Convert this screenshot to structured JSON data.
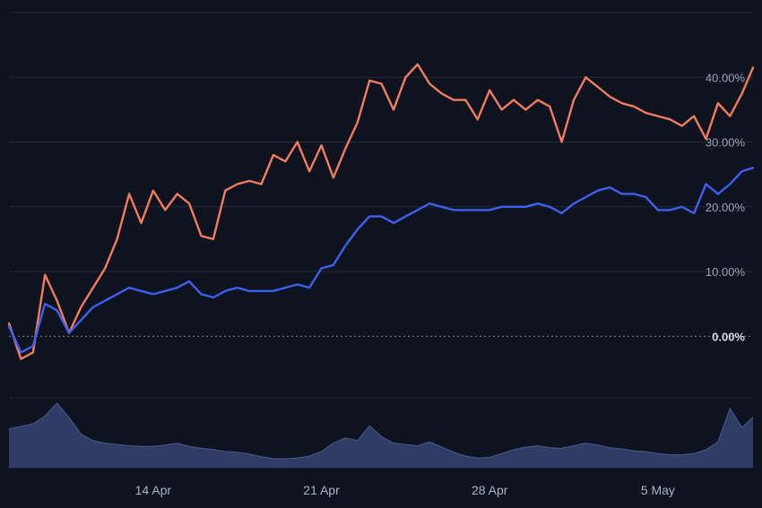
{
  "chart_data": {
    "type": "line",
    "title": "",
    "xlabel": "",
    "ylabel": "",
    "y_unit": "%",
    "ylim": [
      -9.5,
      50
    ],
    "y_ticks": [
      {
        "value": 0,
        "label": "0.00%"
      },
      {
        "value": 10,
        "label": "10.00%"
      },
      {
        "value": 20,
        "label": "20.00%"
      },
      {
        "value": 30,
        "label": "30.00%"
      },
      {
        "value": 40,
        "label": "40.00%"
      }
    ],
    "x_range": [
      "2024-04-08",
      "2024-05-08T23:00"
    ],
    "x_ticks": [
      {
        "date": "2024-04-14",
        "label": "14 Apr"
      },
      {
        "date": "2024-04-21",
        "label": "21 Apr"
      },
      {
        "date": "2024-04-28",
        "label": "28 Apr"
      },
      {
        "date": "2024-05-05",
        "label": "5 May"
      }
    ],
    "baseline_value": 0,
    "grid": true,
    "legend": "none",
    "series": [
      {
        "color": "#f47c5e",
        "points": [
          [
            "2024-04-08T00:00",
            2.0
          ],
          [
            "2024-04-08T12:00",
            -3.5
          ],
          [
            "2024-04-09T00:00",
            -2.5
          ],
          [
            "2024-04-09T12:00",
            9.5
          ],
          [
            "2024-04-10T00:00",
            5.5
          ],
          [
            "2024-04-10T12:00",
            0.5
          ],
          [
            "2024-04-11T00:00",
            4.5
          ],
          [
            "2024-04-11T12:00",
            7.5
          ],
          [
            "2024-04-12T00:00",
            10.5
          ],
          [
            "2024-04-12T12:00",
            15.0
          ],
          [
            "2024-04-13T00:00",
            22.0
          ],
          [
            "2024-04-13T12:00",
            17.5
          ],
          [
            "2024-04-14T00:00",
            22.5
          ],
          [
            "2024-04-14T12:00",
            19.5
          ],
          [
            "2024-04-15T00:00",
            22.0
          ],
          [
            "2024-04-15T12:00",
            20.5
          ],
          [
            "2024-04-16T00:00",
            15.5
          ],
          [
            "2024-04-16T12:00",
            15.0
          ],
          [
            "2024-04-17T00:00",
            22.5
          ],
          [
            "2024-04-17T12:00",
            23.5
          ],
          [
            "2024-04-18T00:00",
            24.0
          ],
          [
            "2024-04-18T12:00",
            23.5
          ],
          [
            "2024-04-19T00:00",
            28.0
          ],
          [
            "2024-04-19T12:00",
            27.0
          ],
          [
            "2024-04-20T00:00",
            30.0
          ],
          [
            "2024-04-20T12:00",
            25.5
          ],
          [
            "2024-04-21T00:00",
            29.5
          ],
          [
            "2024-04-21T12:00",
            24.5
          ],
          [
            "2024-04-22T00:00",
            29.0
          ],
          [
            "2024-04-22T12:00",
            33.0
          ],
          [
            "2024-04-23T00:00",
            39.5
          ],
          [
            "2024-04-23T12:00",
            39.0
          ],
          [
            "2024-04-24T00:00",
            35.0
          ],
          [
            "2024-04-24T12:00",
            40.0
          ],
          [
            "2024-04-25T00:00",
            42.0
          ],
          [
            "2024-04-25T12:00",
            39.0
          ],
          [
            "2024-04-26T00:00",
            37.5
          ],
          [
            "2024-04-26T12:00",
            36.5
          ],
          [
            "2024-04-27T00:00",
            36.5
          ],
          [
            "2024-04-27T12:00",
            33.5
          ],
          [
            "2024-04-28T00:00",
            38.0
          ],
          [
            "2024-04-28T12:00",
            35.0
          ],
          [
            "2024-04-29T00:00",
            36.5
          ],
          [
            "2024-04-29T12:00",
            35.0
          ],
          [
            "2024-04-30T00:00",
            36.5
          ],
          [
            "2024-04-30T12:00",
            35.5
          ],
          [
            "2024-05-01T00:00",
            30.0
          ],
          [
            "2024-05-01T12:00",
            36.5
          ],
          [
            "2024-05-02T00:00",
            40.0
          ],
          [
            "2024-05-02T12:00",
            38.5
          ],
          [
            "2024-05-03T00:00",
            37.0
          ],
          [
            "2024-05-03T12:00",
            36.0
          ],
          [
            "2024-05-04T00:00",
            35.5
          ],
          [
            "2024-05-04T12:00",
            34.5
          ],
          [
            "2024-05-05T00:00",
            34.0
          ],
          [
            "2024-05-05T12:00",
            33.5
          ],
          [
            "2024-05-06T00:00",
            32.5
          ],
          [
            "2024-05-06T12:00",
            34.0
          ],
          [
            "2024-05-07T00:00",
            30.5
          ],
          [
            "2024-05-07T12:00",
            36.0
          ],
          [
            "2024-05-08T00:00",
            34.0
          ],
          [
            "2024-05-08T12:00",
            37.5
          ],
          [
            "2024-05-08T23:00",
            41.5
          ]
        ]
      },
      {
        "color": "#3f5ff0",
        "points": [
          [
            "2024-04-08T00:00",
            1.5
          ],
          [
            "2024-04-08T12:00",
            -2.5
          ],
          [
            "2024-04-09T00:00",
            -1.5
          ],
          [
            "2024-04-09T12:00",
            5.0
          ],
          [
            "2024-04-10T00:00",
            4.0
          ],
          [
            "2024-04-10T12:00",
            0.5
          ],
          [
            "2024-04-11T00:00",
            2.5
          ],
          [
            "2024-04-11T12:00",
            4.5
          ],
          [
            "2024-04-12T00:00",
            5.5
          ],
          [
            "2024-04-12T12:00",
            6.5
          ],
          [
            "2024-04-13T00:00",
            7.5
          ],
          [
            "2024-04-13T12:00",
            7.0
          ],
          [
            "2024-04-14T00:00",
            6.5
          ],
          [
            "2024-04-14T12:00",
            7.0
          ],
          [
            "2024-04-15T00:00",
            7.5
          ],
          [
            "2024-04-15T12:00",
            8.5
          ],
          [
            "2024-04-16T00:00",
            6.5
          ],
          [
            "2024-04-16T12:00",
            6.0
          ],
          [
            "2024-04-17T00:00",
            7.0
          ],
          [
            "2024-04-17T12:00",
            7.5
          ],
          [
            "2024-04-18T00:00",
            7.0
          ],
          [
            "2024-04-18T12:00",
            7.0
          ],
          [
            "2024-04-19T00:00",
            7.0
          ],
          [
            "2024-04-19T12:00",
            7.5
          ],
          [
            "2024-04-20T00:00",
            8.0
          ],
          [
            "2024-04-20T12:00",
            7.5
          ],
          [
            "2024-04-21T00:00",
            10.5
          ],
          [
            "2024-04-21T12:00",
            11.0
          ],
          [
            "2024-04-22T00:00",
            14.0
          ],
          [
            "2024-04-22T12:00",
            16.5
          ],
          [
            "2024-04-23T00:00",
            18.5
          ],
          [
            "2024-04-23T12:00",
            18.5
          ],
          [
            "2024-04-24T00:00",
            17.5
          ],
          [
            "2024-04-24T12:00",
            18.5
          ],
          [
            "2024-04-25T00:00",
            19.5
          ],
          [
            "2024-04-25T12:00",
            20.5
          ],
          [
            "2024-04-26T00:00",
            20.0
          ],
          [
            "2024-04-26T12:00",
            19.5
          ],
          [
            "2024-04-27T00:00",
            19.5
          ],
          [
            "2024-04-27T12:00",
            19.5
          ],
          [
            "2024-04-28T00:00",
            19.5
          ],
          [
            "2024-04-28T12:00",
            20.0
          ],
          [
            "2024-04-29T00:00",
            20.0
          ],
          [
            "2024-04-29T12:00",
            20.0
          ],
          [
            "2024-04-30T00:00",
            20.5
          ],
          [
            "2024-04-30T12:00",
            20.0
          ],
          [
            "2024-05-01T00:00",
            19.0
          ],
          [
            "2024-05-01T12:00",
            20.5
          ],
          [
            "2024-05-02T00:00",
            21.5
          ],
          [
            "2024-05-02T12:00",
            22.5
          ],
          [
            "2024-05-03T00:00",
            23.0
          ],
          [
            "2024-05-03T12:00",
            22.0
          ],
          [
            "2024-05-04T00:00",
            22.0
          ],
          [
            "2024-05-04T12:00",
            21.5
          ],
          [
            "2024-05-05T00:00",
            19.5
          ],
          [
            "2024-05-05T12:00",
            19.5
          ],
          [
            "2024-05-06T00:00",
            20.0
          ],
          [
            "2024-05-06T12:00",
            19.0
          ],
          [
            "2024-05-07T00:00",
            23.5
          ],
          [
            "2024-05-07T12:00",
            22.0
          ],
          [
            "2024-05-08T00:00",
            23.5
          ],
          [
            "2024-05-08T12:00",
            25.5
          ],
          [
            "2024-05-08T23:00",
            26.0
          ]
        ]
      }
    ],
    "volume": {
      "color": "#34416b",
      "scale_max": 1.0,
      "points": [
        [
          "2024-04-08T00:00",
          0.6
        ],
        [
          "2024-04-08T12:00",
          0.64
        ],
        [
          "2024-04-09T00:00",
          0.68
        ],
        [
          "2024-04-09T12:00",
          0.8
        ],
        [
          "2024-04-10T00:00",
          1.0
        ],
        [
          "2024-04-10T12:00",
          0.78
        ],
        [
          "2024-04-11T00:00",
          0.52
        ],
        [
          "2024-04-11T12:00",
          0.42
        ],
        [
          "2024-04-12T00:00",
          0.38
        ],
        [
          "2024-04-12T12:00",
          0.36
        ],
        [
          "2024-04-13T00:00",
          0.34
        ],
        [
          "2024-04-13T12:00",
          0.33
        ],
        [
          "2024-04-14T00:00",
          0.33
        ],
        [
          "2024-04-14T12:00",
          0.35
        ],
        [
          "2024-04-15T00:00",
          0.38
        ],
        [
          "2024-04-15T12:00",
          0.33
        ],
        [
          "2024-04-16T00:00",
          0.3
        ],
        [
          "2024-04-16T12:00",
          0.28
        ],
        [
          "2024-04-17T00:00",
          0.25
        ],
        [
          "2024-04-17T12:00",
          0.24
        ],
        [
          "2024-04-18T00:00",
          0.21
        ],
        [
          "2024-04-18T12:00",
          0.17
        ],
        [
          "2024-04-19T00:00",
          0.14
        ],
        [
          "2024-04-19T12:00",
          0.14
        ],
        [
          "2024-04-20T00:00",
          0.15
        ],
        [
          "2024-04-20T12:00",
          0.18
        ],
        [
          "2024-04-21T00:00",
          0.25
        ],
        [
          "2024-04-21T12:00",
          0.38
        ],
        [
          "2024-04-22T00:00",
          0.46
        ],
        [
          "2024-04-22T12:00",
          0.42
        ],
        [
          "2024-04-23T00:00",
          0.65
        ],
        [
          "2024-04-23T12:00",
          0.48
        ],
        [
          "2024-04-24T00:00",
          0.38
        ],
        [
          "2024-04-24T12:00",
          0.36
        ],
        [
          "2024-04-25T00:00",
          0.34
        ],
        [
          "2024-04-25T12:00",
          0.4
        ],
        [
          "2024-04-26T00:00",
          0.32
        ],
        [
          "2024-04-26T12:00",
          0.24
        ],
        [
          "2024-04-27T00:00",
          0.18
        ],
        [
          "2024-04-27T12:00",
          0.15
        ],
        [
          "2024-04-28T00:00",
          0.16
        ],
        [
          "2024-04-28T12:00",
          0.22
        ],
        [
          "2024-04-29T00:00",
          0.28
        ],
        [
          "2024-04-29T12:00",
          0.32
        ],
        [
          "2024-04-30T00:00",
          0.34
        ],
        [
          "2024-04-30T12:00",
          0.31
        ],
        [
          "2024-05-01T00:00",
          0.3
        ],
        [
          "2024-05-01T12:00",
          0.34
        ],
        [
          "2024-05-02T00:00",
          0.38
        ],
        [
          "2024-05-02T12:00",
          0.35
        ],
        [
          "2024-05-03T00:00",
          0.31
        ],
        [
          "2024-05-03T12:00",
          0.29
        ],
        [
          "2024-05-04T00:00",
          0.26
        ],
        [
          "2024-05-04T12:00",
          0.25
        ],
        [
          "2024-05-05T00:00",
          0.22
        ],
        [
          "2024-05-05T12:00",
          0.2
        ],
        [
          "2024-05-06T00:00",
          0.2
        ],
        [
          "2024-05-06T12:00",
          0.22
        ],
        [
          "2024-05-07T00:00",
          0.28
        ],
        [
          "2024-05-07T12:00",
          0.4
        ],
        [
          "2024-05-08T00:00",
          0.92
        ],
        [
          "2024-05-08T12:00",
          0.62
        ],
        [
          "2024-05-08T23:00",
          0.78
        ]
      ]
    }
  }
}
